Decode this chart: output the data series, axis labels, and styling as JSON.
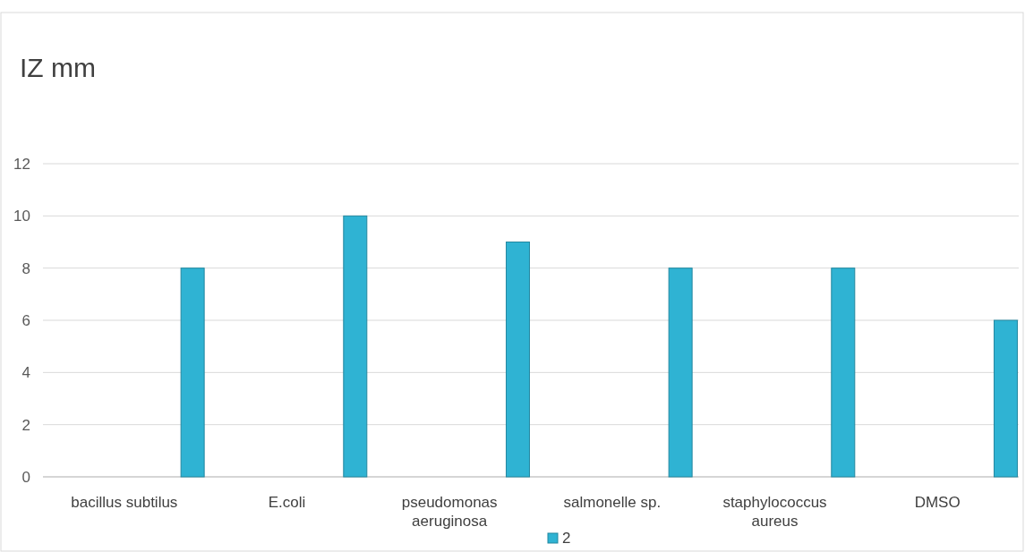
{
  "chart_data": {
    "type": "bar",
    "title": "IZ mm",
    "categories": [
      "bacillus subtilus",
      "E.coli",
      "pseudomonas aeruginosa",
      "salmonelle sp.",
      "staphylococcus aureus",
      "DMSO"
    ],
    "series": [
      {
        "name": "2",
        "color": "#2fb3d3",
        "values": [
          8,
          10,
          9,
          8,
          8,
          6
        ]
      }
    ],
    "ylim": [
      0,
      12
    ],
    "yticks": [
      0,
      2,
      4,
      6,
      8,
      10,
      12
    ],
    "grid": "y",
    "legend": "bottom"
  }
}
